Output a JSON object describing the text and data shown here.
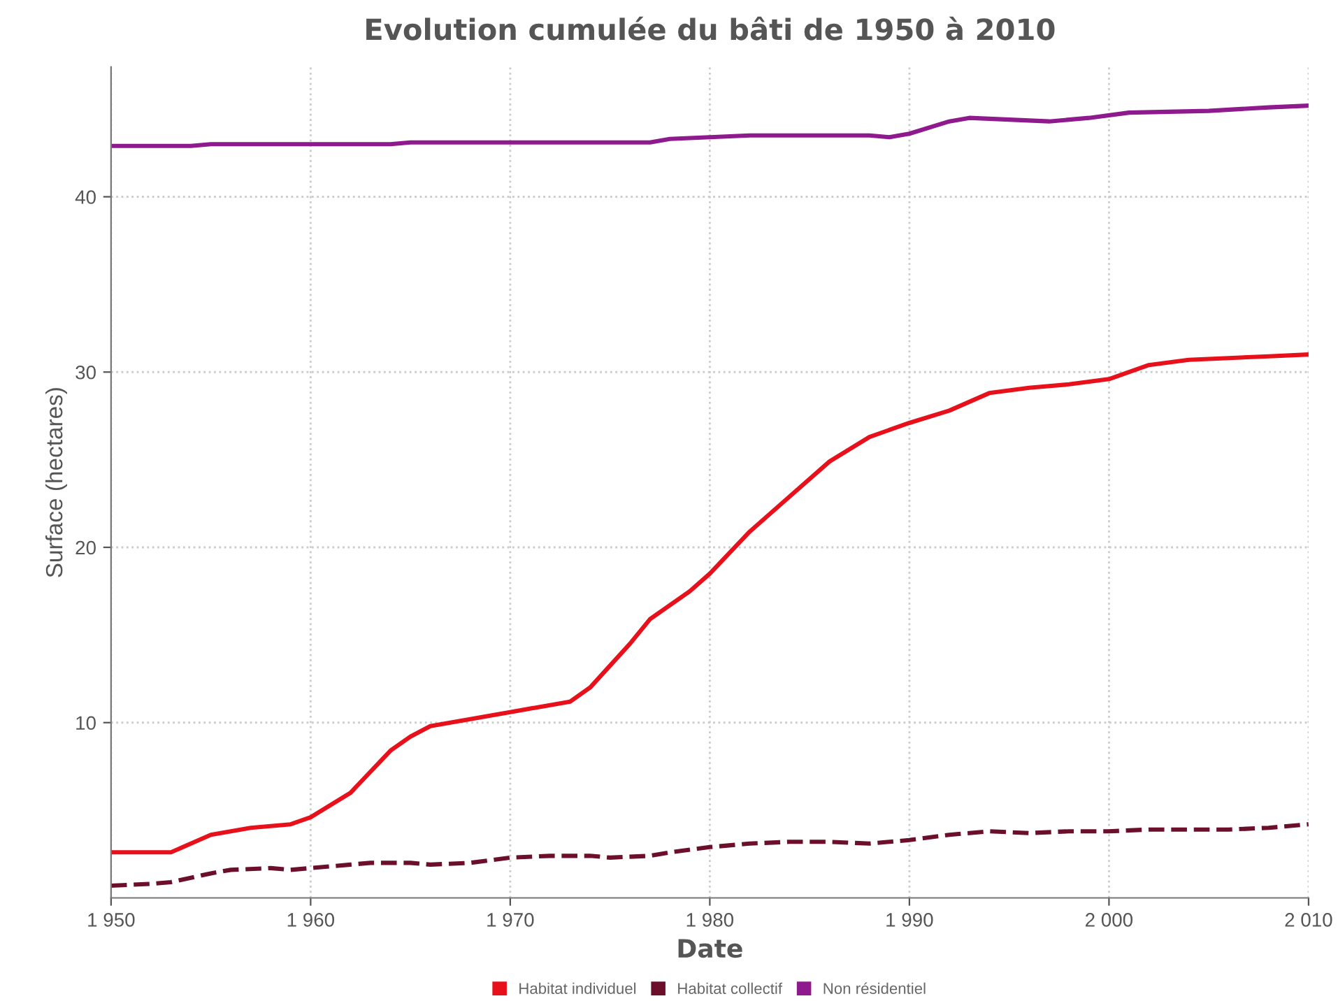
{
  "chart_data": {
    "type": "line",
    "title": "Evolution cumulée du bâti de 1950 à 2010",
    "xlabel": "Date",
    "ylabel": "Surface (hectares)",
    "xlim": [
      1950,
      2010
    ],
    "ylim": [
      0,
      47.4
    ],
    "xticks": [
      {
        "value": 1950,
        "label": "1 950"
      },
      {
        "value": 1960,
        "label": "1 960"
      },
      {
        "value": 1970,
        "label": "1 970"
      },
      {
        "value": 1980,
        "label": "1 980"
      },
      {
        "value": 1990,
        "label": "1 990"
      },
      {
        "value": 2000,
        "label": "2 000"
      },
      {
        "value": 2010,
        "label": "2 010"
      }
    ],
    "yticks": [
      10,
      20,
      30,
      40
    ],
    "grid": true,
    "legend": "bottom",
    "series": [
      {
        "name": "Habitat individuel",
        "color": "#e8101a",
        "line_style": "solid",
        "x": [
          1950,
          1953,
          1955,
          1957,
          1959,
          1960,
          1962,
          1964,
          1965,
          1966,
          1968,
          1970,
          1972,
          1973,
          1974,
          1976,
          1977,
          1979,
          1980,
          1982,
          1984,
          1986,
          1988,
          1990,
          1992,
          1994,
          1996,
          1998,
          2000,
          2002,
          2004,
          2006,
          2008,
          2010
        ],
        "values": [
          2.6,
          2.6,
          3.6,
          4.0,
          4.2,
          4.6,
          6.0,
          8.4,
          9.2,
          9.8,
          10.2,
          10.6,
          11.0,
          11.2,
          12.0,
          14.5,
          15.9,
          17.5,
          18.5,
          20.9,
          22.9,
          24.9,
          26.3,
          27.1,
          27.8,
          28.8,
          29.1,
          29.3,
          29.6,
          30.4,
          30.7,
          30.8,
          30.9,
          31.0
        ]
      },
      {
        "name": "Habitat collectif",
        "color": "#6b0f2a",
        "line_style": "dashed",
        "x": [
          1950,
          1952,
          1953,
          1955,
          1956,
          1958,
          1959,
          1960,
          1962,
          1963,
          1965,
          1966,
          1968,
          1970,
          1972,
          1974,
          1975,
          1977,
          1978,
          1980,
          1982,
          1984,
          1986,
          1988,
          1990,
          1992,
          1994,
          1996,
          1998,
          2000,
          2002,
          2004,
          2006,
          2008,
          2010
        ],
        "values": [
          0.7,
          0.8,
          0.9,
          1.4,
          1.6,
          1.7,
          1.6,
          1.7,
          1.9,
          2.0,
          2.0,
          1.9,
          2.0,
          2.3,
          2.4,
          2.4,
          2.3,
          2.4,
          2.6,
          2.9,
          3.1,
          3.2,
          3.2,
          3.1,
          3.3,
          3.6,
          3.8,
          3.7,
          3.8,
          3.8,
          3.9,
          3.9,
          3.9,
          4.0,
          4.2
        ]
      },
      {
        "name": "Non résidentiel",
        "color": "#8e1a8e",
        "line_style": "solid",
        "x": [
          1950,
          1954,
          1955,
          1964,
          1965,
          1977,
          1978,
          1980,
          1982,
          1988,
          1989,
          1990,
          1992,
          1993,
          1995,
          1997,
          1999,
          2001,
          2005,
          2008,
          2010
        ],
        "values": [
          42.9,
          42.9,
          43.0,
          43.0,
          43.1,
          43.1,
          43.3,
          43.4,
          43.5,
          43.5,
          43.4,
          43.6,
          44.3,
          44.5,
          44.4,
          44.3,
          44.5,
          44.8,
          44.9,
          45.1,
          45.2
        ]
      }
    ]
  }
}
